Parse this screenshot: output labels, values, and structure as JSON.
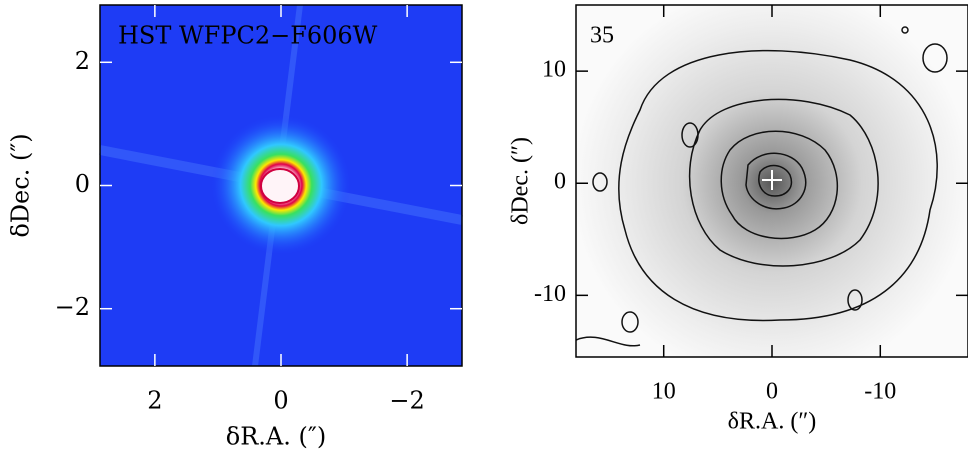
{
  "chart_data": [
    {
      "type": "heatmap",
      "annotation": "HST WFPC2−F606W",
      "xlabel": "δR.A. (″)",
      "ylabel": "δDec. (″)",
      "xlim": [
        2.87,
        -2.87
      ],
      "ylim": [
        -2.93,
        2.93
      ],
      "xticks": [
        2,
        0,
        {
          "value": -2,
          "label": "−2"
        }
      ],
      "yticks": [
        {
          "value": -2,
          "label": "−2"
        },
        0,
        2
      ]
    },
    {
      "type": "contour",
      "annotation": "35",
      "xlabel": "δR.A. (″)",
      "ylabel": "δDec. (″)",
      "xlim": [
        18.1,
        -18.1
      ],
      "ylim": [
        -15.5,
        15.9
      ],
      "xticks": [
        10,
        0,
        -10
      ],
      "yticks": [
        -10,
        0,
        10
      ]
    }
  ]
}
